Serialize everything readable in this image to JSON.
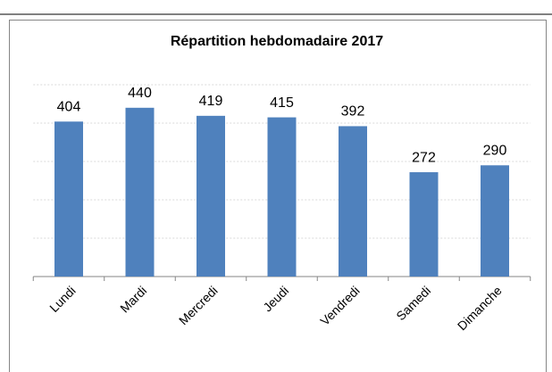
{
  "chart_data": {
    "type": "bar",
    "title": "Répartition hebdomadaire 2017",
    "categories": [
      "Lundi",
      "Mardi",
      "Mercredi",
      "Jeudi",
      "Vendredi",
      "Samedi",
      "Dimanche"
    ],
    "values": [
      404,
      440,
      419,
      415,
      392,
      272,
      290
    ],
    "color": "#4f81bd",
    "ylim": [
      0,
      500
    ],
    "yticks": [
      0,
      100,
      200,
      300,
      400,
      500
    ],
    "grid": true
  }
}
